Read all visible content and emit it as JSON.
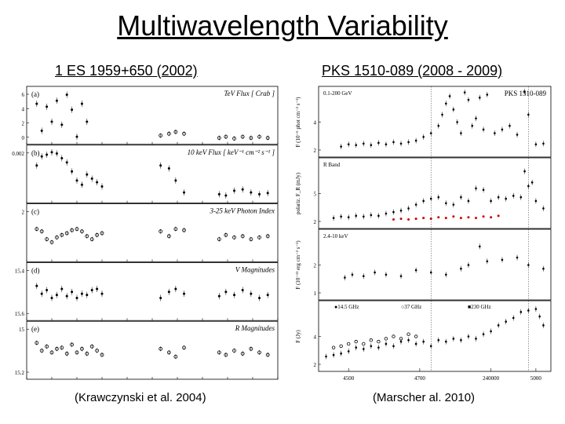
{
  "title": "Multiwavelength Variability",
  "left": {
    "subtitle": "1 ES 1959+650 (2002)",
    "caption": "(Krawczynski et al. 2004)",
    "panels": [
      {
        "tag": "(a)",
        "right_label": "TeV Flux [ Crab ]",
        "yticks": [
          "6",
          "4",
          "2",
          "0"
        ],
        "pts": [
          [
            12,
            25
          ],
          [
            18,
            70
          ],
          [
            24,
            30
          ],
          [
            30,
            55
          ],
          [
            36,
            20
          ],
          [
            42,
            60
          ],
          [
            48,
            10
          ],
          [
            54,
            35
          ],
          [
            60,
            80
          ],
          [
            66,
            25
          ],
          [
            72,
            55
          ]
        ],
        "open": [
          [
            160,
            78
          ],
          [
            170,
            75
          ],
          [
            178,
            72
          ],
          [
            188,
            75
          ],
          [
            230,
            82
          ],
          [
            238,
            80
          ],
          [
            248,
            83
          ],
          [
            258,
            80
          ],
          [
            268,
            82
          ],
          [
            278,
            80
          ],
          [
            288,
            82
          ]
        ]
      },
      {
        "tag": "(b)",
        "right_label": "10 keV Flux [ keV⁻¹ cm⁻² s⁻¹ ]",
        "yticks": [
          "0.002"
        ],
        "pts": [
          [
            12,
            30
          ],
          [
            18,
            15
          ],
          [
            24,
            12
          ],
          [
            30,
            8
          ],
          [
            36,
            10
          ],
          [
            42,
            18
          ],
          [
            48,
            25
          ],
          [
            54,
            40
          ],
          [
            60,
            55
          ],
          [
            66,
            62
          ],
          [
            72,
            45
          ],
          [
            78,
            52
          ],
          [
            84,
            58
          ],
          [
            90,
            65
          ],
          [
            160,
            30
          ],
          [
            170,
            35
          ],
          [
            178,
            55
          ],
          [
            188,
            75
          ],
          [
            230,
            78
          ],
          [
            238,
            80
          ],
          [
            248,
            72
          ],
          [
            258,
            70
          ],
          [
            268,
            75
          ],
          [
            278,
            78
          ],
          [
            288,
            76
          ]
        ]
      },
      {
        "tag": "(c)",
        "right_label": "3-25 keV Photon Index",
        "yticks": [
          "2"
        ],
        "open": [
          [
            12,
            38
          ],
          [
            18,
            42
          ],
          [
            24,
            55
          ],
          [
            30,
            60
          ],
          [
            36,
            52
          ],
          [
            42,
            48
          ],
          [
            48,
            45
          ],
          [
            54,
            40
          ],
          [
            60,
            38
          ],
          [
            66,
            42
          ],
          [
            72,
            50
          ],
          [
            78,
            55
          ],
          [
            84,
            48
          ],
          [
            90,
            45
          ],
          [
            160,
            42
          ],
          [
            170,
            50
          ],
          [
            178,
            38
          ],
          [
            188,
            40
          ],
          [
            230,
            55
          ],
          [
            238,
            48
          ],
          [
            248,
            52
          ],
          [
            258,
            50
          ],
          [
            268,
            55
          ],
          [
            278,
            52
          ],
          [
            288,
            50
          ]
        ]
      },
      {
        "tag": "(d)",
        "right_label": "V Magnitudes",
        "yticks": [
          "15.4",
          "15.6"
        ],
        "pts": [
          [
            12,
            35
          ],
          [
            18,
            48
          ],
          [
            24,
            42
          ],
          [
            30,
            55
          ],
          [
            36,
            50
          ],
          [
            42,
            40
          ],
          [
            48,
            52
          ],
          [
            54,
            45
          ],
          [
            60,
            55
          ],
          [
            66,
            48
          ],
          [
            72,
            50
          ],
          [
            78,
            42
          ],
          [
            84,
            40
          ],
          [
            90,
            48
          ],
          [
            160,
            55
          ],
          [
            170,
            45
          ],
          [
            178,
            40
          ],
          [
            188,
            48
          ],
          [
            230,
            52
          ],
          [
            238,
            45
          ],
          [
            248,
            50
          ],
          [
            258,
            42
          ],
          [
            268,
            48
          ],
          [
            278,
            55
          ],
          [
            288,
            50
          ]
        ]
      },
      {
        "tag": "(e)",
        "right_label": "R Magnitudes",
        "yticks": [
          "15",
          "15.2"
        ],
        "open": [
          [
            12,
            32
          ],
          [
            18,
            45
          ],
          [
            24,
            38
          ],
          [
            30,
            48
          ],
          [
            36,
            42
          ],
          [
            42,
            40
          ],
          [
            48,
            50
          ],
          [
            54,
            35
          ],
          [
            60,
            48
          ],
          [
            66,
            42
          ],
          [
            72,
            50
          ],
          [
            78,
            38
          ],
          [
            84,
            45
          ],
          [
            90,
            52
          ],
          [
            160,
            42
          ],
          [
            170,
            48
          ],
          [
            178,
            55
          ],
          [
            188,
            40
          ],
          [
            230,
            48
          ],
          [
            238,
            52
          ],
          [
            248,
            45
          ],
          [
            258,
            50
          ],
          [
            268,
            42
          ],
          [
            278,
            48
          ],
          [
            288,
            52
          ]
        ]
      }
    ]
  },
  "right": {
    "subtitle": "PKS 1510-089 (2008 - 2009)",
    "caption": "(Marscher al. 2010)",
    "panels": [
      {
        "top_right": "PKS 1510-089",
        "yleft": "0.1-200 GeV",
        "ylabel": "F (10⁻⁶ phot cm⁻² s⁻¹)",
        "yticks": [
          "2",
          "4"
        ],
        "pts": [
          [
            30,
            78
          ],
          [
            40,
            75
          ],
          [
            50,
            76
          ],
          [
            60,
            74
          ],
          [
            70,
            76
          ],
          [
            80,
            73
          ],
          [
            90,
            75
          ],
          [
            100,
            72
          ],
          [
            110,
            74
          ],
          [
            120,
            72
          ],
          [
            130,
            70
          ],
          [
            140,
            65
          ],
          [
            150,
            60
          ],
          [
            160,
            50
          ],
          [
            165,
            35
          ],
          [
            170,
            20
          ],
          [
            175,
            10
          ],
          [
            180,
            28
          ],
          [
            185,
            45
          ],
          [
            190,
            60
          ],
          [
            195,
            5
          ],
          [
            200,
            15
          ],
          [
            205,
            50
          ],
          [
            210,
            40
          ],
          [
            215,
            12
          ],
          [
            220,
            55
          ],
          [
            225,
            8
          ],
          [
            235,
            60
          ],
          [
            245,
            55
          ],
          [
            255,
            50
          ],
          [
            265,
            62
          ],
          [
            275,
            4
          ],
          [
            280,
            35
          ],
          [
            290,
            75
          ],
          [
            300,
            74
          ]
        ]
      },
      {
        "yleft": "R  Band",
        "ylabel": "polariz. F_R (mJy)",
        "yticks": [
          "2",
          "5"
        ],
        "pts": [
          [
            20,
            78
          ],
          [
            30,
            76
          ],
          [
            40,
            77
          ],
          [
            50,
            75
          ],
          [
            60,
            76
          ],
          [
            70,
            74
          ],
          [
            80,
            75
          ],
          [
            90,
            72
          ],
          [
            100,
            70
          ],
          [
            110,
            68
          ],
          [
            120,
            65
          ],
          [
            130,
            60
          ],
          [
            140,
            55
          ],
          [
            150,
            52
          ],
          [
            160,
            50
          ],
          [
            170,
            58
          ],
          [
            180,
            60
          ],
          [
            190,
            50
          ],
          [
            200,
            55
          ],
          [
            210,
            38
          ],
          [
            220,
            40
          ],
          [
            230,
            55
          ],
          [
            240,
            50
          ],
          [
            250,
            52
          ],
          [
            260,
            48
          ],
          [
            270,
            50
          ],
          [
            275,
            15
          ],
          [
            280,
            35
          ],
          [
            285,
            30
          ],
          [
            290,
            55
          ],
          [
            300,
            65
          ]
        ],
        "red": [
          [
            100,
            80
          ],
          [
            110,
            79
          ],
          [
            120,
            80
          ],
          [
            130,
            79
          ],
          [
            140,
            78
          ],
          [
            150,
            79
          ],
          [
            160,
            77
          ],
          [
            170,
            78
          ],
          [
            180,
            76
          ],
          [
            190,
            78
          ],
          [
            200,
            77
          ],
          [
            210,
            78
          ],
          [
            220,
            76
          ],
          [
            230,
            77
          ],
          [
            240,
            75
          ]
        ]
      },
      {
        "yleft": "2.4-10 keV",
        "ylabel": "F (10⁻¹¹ erg cm⁻² s⁻¹)",
        "yticks": [
          "1",
          "2"
        ],
        "pts": [
          [
            35,
            62
          ],
          [
            45,
            58
          ],
          [
            60,
            60
          ],
          [
            75,
            55
          ],
          [
            90,
            58
          ],
          [
            110,
            60
          ],
          [
            130,
            52
          ],
          [
            150,
            55
          ],
          [
            170,
            58
          ],
          [
            190,
            50
          ],
          [
            200,
            45
          ],
          [
            215,
            20
          ],
          [
            225,
            40
          ],
          [
            245,
            38
          ],
          [
            265,
            35
          ],
          [
            280,
            45
          ],
          [
            300,
            50
          ]
        ]
      },
      {
        "legend": [
          "●14.5 GHz",
          "○37 GHz",
          "■230 GHz"
        ],
        "ylabel": "F (Jy)",
        "yticks": [
          "2",
          "4"
        ],
        "pts": [
          [
            10,
            72
          ],
          [
            20,
            70
          ],
          [
            30,
            68
          ],
          [
            40,
            65
          ],
          [
            50,
            60
          ],
          [
            60,
            62
          ],
          [
            70,
            58
          ],
          [
            80,
            60
          ],
          [
            90,
            55
          ],
          [
            100,
            58
          ],
          [
            110,
            52
          ],
          [
            120,
            50
          ],
          [
            130,
            55
          ],
          [
            140,
            52
          ],
          [
            150,
            58
          ],
          [
            160,
            50
          ],
          [
            170,
            52
          ],
          [
            180,
            48
          ],
          [
            190,
            50
          ],
          [
            200,
            45
          ],
          [
            210,
            48
          ],
          [
            220,
            42
          ],
          [
            230,
            38
          ],
          [
            240,
            30
          ],
          [
            250,
            25
          ],
          [
            260,
            20
          ],
          [
            270,
            12
          ],
          [
            280,
            10
          ],
          [
            290,
            8
          ],
          [
            295,
            18
          ],
          [
            300,
            30
          ]
        ],
        "open": [
          [
            20,
            60
          ],
          [
            30,
            58
          ],
          [
            40,
            55
          ],
          [
            50,
            52
          ],
          [
            60,
            55
          ],
          [
            70,
            50
          ],
          [
            80,
            52
          ],
          [
            90,
            48
          ],
          [
            100,
            45
          ],
          [
            110,
            48
          ],
          [
            120,
            42
          ],
          [
            130,
            45
          ]
        ],
        "xticks": [
          {
            "pos": 40,
            "lbl": "4500"
          },
          {
            "pos": 135,
            "lbl": "4700"
          },
          {
            "pos": 230,
            "lbl": "240000"
          },
          {
            "pos": 290,
            "lbl": "5000"
          }
        ]
      }
    ]
  },
  "colors": {
    "bg": "#ffffff",
    "fg": "#000000",
    "red": "#cc0000"
  }
}
